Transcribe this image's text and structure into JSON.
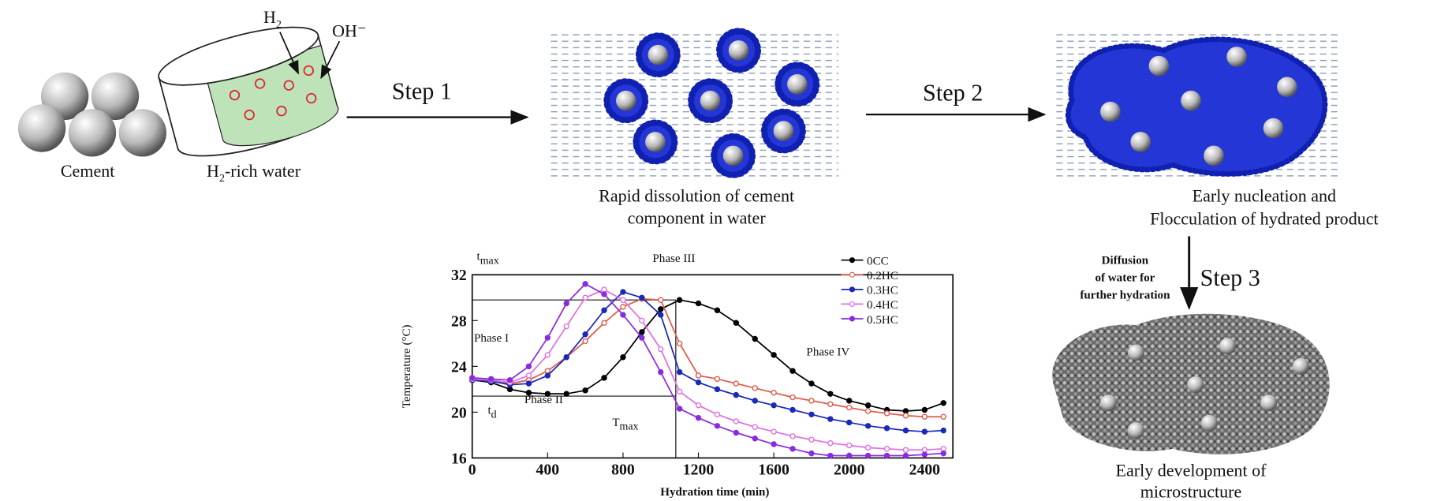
{
  "labels": {
    "cement": "Cement",
    "h2": {
      "base": "H",
      "sub": "2"
    },
    "oh": "OH⁻",
    "rich_water": {
      "base": "H",
      "sub": "2",
      "rest": "-rich water"
    },
    "step1": "Step 1",
    "step2": "Step 2",
    "step3": "Step 3",
    "dissolution": [
      "Rapid dissolution of cement",
      "component in water"
    ],
    "nucleation": [
      "Early nucleation and",
      "Flocculation of hydrated product"
    ],
    "diffusion": [
      "Diffusion",
      "of water for",
      "further hydration"
    ],
    "development": [
      "Early development of",
      "microstructure"
    ]
  },
  "chart_data": {
    "type": "line",
    "xlabel": "Hydration time (min)",
    "ylabel": "Temperature (°C)",
    "x": [
      0,
      100,
      200,
      300,
      400,
      500,
      600,
      700,
      800,
      900,
      1000,
      1100,
      1200,
      1300,
      1400,
      1500,
      1600,
      1700,
      1800,
      1900,
      2000,
      2100,
      2200,
      2300,
      2400,
      2500
    ],
    "series": [
      {
        "name": "0CC",
        "color": "#000000",
        "values": [
          22.8,
          22.6,
          22.0,
          21.7,
          21.6,
          21.6,
          21.9,
          23.0,
          24.8,
          27.0,
          29.0,
          29.8,
          29.5,
          28.9,
          27.8,
          26.4,
          25.0,
          23.6,
          22.5,
          21.6,
          21.0,
          20.6,
          20.2,
          20.1,
          20.2,
          20.8
        ]
      },
      {
        "name": "0.2HC",
        "color": "#e05a4a",
        "values": [
          22.8,
          22.7,
          22.5,
          22.8,
          23.6,
          24.8,
          26.2,
          27.8,
          29.2,
          29.9,
          29.8,
          26.0,
          23.2,
          22.9,
          22.5,
          22.1,
          21.7,
          21.3,
          21.0,
          20.7,
          20.4,
          20.1,
          19.9,
          19.7,
          19.6,
          19.6
        ]
      },
      {
        "name": "0.3HC",
        "color": "#1a2ab8",
        "values": [
          22.8,
          22.7,
          22.4,
          22.5,
          23.2,
          24.8,
          26.8,
          28.9,
          30.5,
          30.0,
          28.5,
          23.5,
          22.6,
          22.0,
          21.5,
          21.0,
          20.6,
          20.2,
          19.8,
          19.4,
          19.1,
          18.8,
          18.6,
          18.4,
          18.3,
          18.4
        ]
      },
      {
        "name": "0.4HC",
        "color": "#e070e0",
        "values": [
          22.9,
          22.8,
          22.6,
          23.2,
          25.0,
          27.5,
          30.0,
          30.7,
          29.8,
          28.0,
          25.5,
          21.8,
          20.6,
          19.8,
          19.2,
          18.7,
          18.3,
          17.9,
          17.6,
          17.3,
          17.1,
          16.9,
          16.8,
          16.7,
          16.7,
          16.8
        ]
      },
      {
        "name": "0.5HC",
        "color": "#8a2be2",
        "values": [
          23.0,
          22.9,
          22.8,
          24.0,
          26.5,
          29.5,
          31.2,
          30.3,
          28.5,
          26.5,
          23.5,
          20.3,
          19.5,
          18.8,
          18.2,
          17.7,
          17.2,
          16.8,
          16.4,
          16.2,
          16.2,
          16.2,
          16.2,
          16.2,
          16.3,
          16.4
        ]
      }
    ],
    "xlim": [
      0,
      2550
    ],
    "ylim": [
      16,
      32
    ],
    "xticks": [
      0,
      400,
      800,
      1200,
      1600,
      2000,
      2400
    ],
    "yticks": [
      16,
      20,
      24,
      28,
      32
    ],
    "hlines": [
      29.8,
      21.4
    ],
    "vline": 1080,
    "annotations": {
      "phase1": "Phase I",
      "phase2": "Phase II",
      "phase3": "Phase III",
      "phase4": "Phase IV",
      "tmax": {
        "base": "t",
        "sub": "max"
      },
      "td": {
        "base": "t",
        "sub": "d"
      },
      "Tmax": {
        "base": "T",
        "sub": "max"
      }
    }
  }
}
